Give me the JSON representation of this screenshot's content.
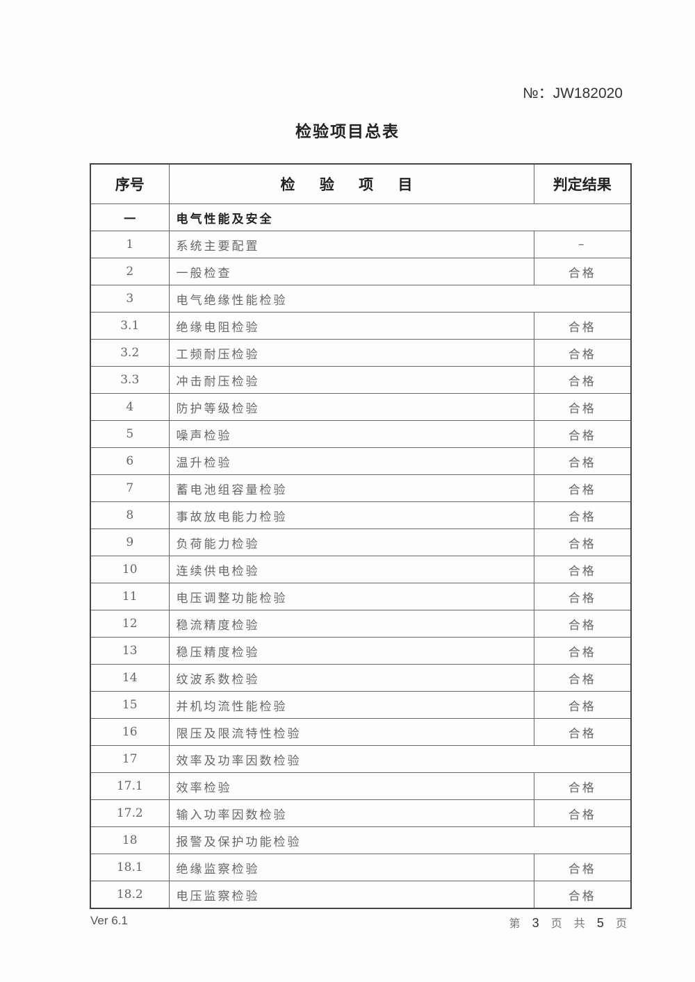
{
  "doc_no": "№：JW182020",
  "title": "检验项目总表",
  "headers": {
    "no": "序号",
    "item": "检 验 项 目",
    "result": "判定结果"
  },
  "rows": [
    {
      "no": "一",
      "item": "电气性能及安全",
      "result": null,
      "section": true
    },
    {
      "no": "1",
      "item": "系统主要配置",
      "result": "–"
    },
    {
      "no": "2",
      "item": "一般检查",
      "result": "合格"
    },
    {
      "no": "3",
      "item": "电气绝缘性能检验",
      "result": null
    },
    {
      "no": "3.1",
      "item": "绝缘电阻检验",
      "result": "合格"
    },
    {
      "no": "3.2",
      "item": "工频耐压检验",
      "result": "合格"
    },
    {
      "no": "3.3",
      "item": "冲击耐压检验",
      "result": "合格"
    },
    {
      "no": "4",
      "item": "防护等级检验",
      "result": "合格"
    },
    {
      "no": "5",
      "item": "噪声检验",
      "result": "合格"
    },
    {
      "no": "6",
      "item": "温升检验",
      "result": "合格"
    },
    {
      "no": "7",
      "item": "蓄电池组容量检验",
      "result": "合格"
    },
    {
      "no": "8",
      "item": "事故放电能力检验",
      "result": "合格"
    },
    {
      "no": "9",
      "item": "负荷能力检验",
      "result": "合格"
    },
    {
      "no": "10",
      "item": "连续供电检验",
      "result": "合格"
    },
    {
      "no": "11",
      "item": "电压调整功能检验",
      "result": "合格"
    },
    {
      "no": "12",
      "item": "稳流精度检验",
      "result": "合格"
    },
    {
      "no": "13",
      "item": "稳压精度检验",
      "result": "合格"
    },
    {
      "no": "14",
      "item": "纹波系数检验",
      "result": "合格"
    },
    {
      "no": "15",
      "item": "并机均流性能检验",
      "result": "合格"
    },
    {
      "no": "16",
      "item": "限压及限流特性检验",
      "result": "合格"
    },
    {
      "no": "17",
      "item": "效率及功率因数检验",
      "result": null
    },
    {
      "no": "17.1",
      "item": "效率检验",
      "result": "合格"
    },
    {
      "no": "17.2",
      "item": "输入功率因数检验",
      "result": "合格"
    },
    {
      "no": "18",
      "item": "报警及保护功能检验",
      "result": null
    },
    {
      "no": "18.1",
      "item": "绝缘监察检验",
      "result": "合格"
    },
    {
      "no": "18.2",
      "item": "电压监察检验",
      "result": "合格"
    }
  ],
  "footer": {
    "version": "Ver 6.1",
    "page_prefix": "第",
    "page": "3",
    "page_mid": "页 共",
    "total": "5",
    "page_suffix": "页"
  }
}
